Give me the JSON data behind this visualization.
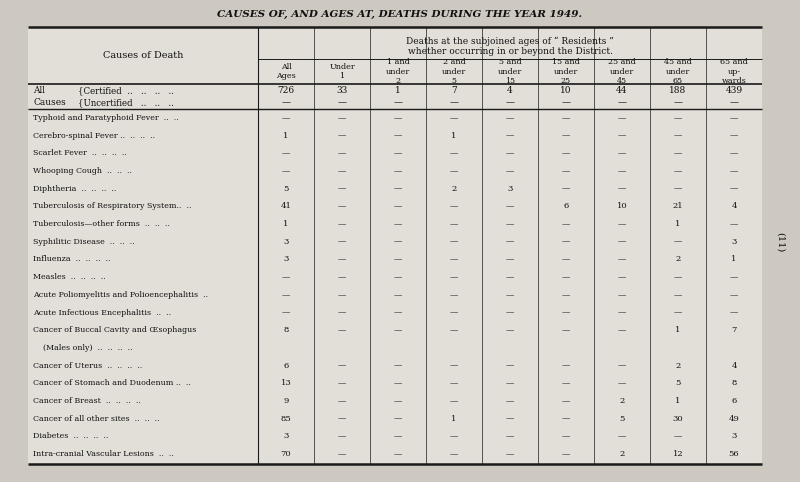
{
  "title": "CAUSES OF, AND AGES AT, DEATHS DURING THE YEAR 1949.",
  "subtitle1": "Deaths at the subjoined ages of “ Residents ”",
  "subtitle2": "whether occurring in or beyond the District.",
  "col_headers": [
    "All\nAges",
    "Under\n1",
    "1 and\nunder\n2",
    "2 and\nunder\n5",
    "5 and\nunder\n15",
    "15 and\nunder\n25",
    "25 and\nunder\n45",
    "45 and\nunder\n65",
    "65 and\nup-\nwards"
  ],
  "data": [
    [
      "726",
      "33",
      "1",
      "7",
      "4",
      "10",
      "44",
      "188",
      "439"
    ],
    [
      "—",
      "—",
      "—",
      "—",
      "—",
      "—",
      "—",
      "—",
      "—"
    ],
    [
      "—",
      "—",
      "—",
      "—",
      "—",
      "—",
      "—",
      "—",
      "—"
    ],
    [
      "1",
      "—",
      "—",
      "1",
      "—",
      "—",
      "—",
      "—",
      "—"
    ],
    [
      "—",
      "—",
      "—",
      "—",
      "—",
      "—",
      "—",
      "—",
      "—"
    ],
    [
      "—",
      "—",
      "—",
      "—",
      "—",
      "—",
      "—",
      "—",
      "—"
    ],
    [
      "5",
      "—",
      "—",
      "2",
      "3",
      "—",
      "—",
      "—",
      "—"
    ],
    [
      "41",
      "—",
      "—",
      "—",
      "—",
      "6",
      "10",
      "21",
      "4"
    ],
    [
      "1",
      "—",
      "—",
      "—",
      "—",
      "—",
      "—",
      "1",
      "—"
    ],
    [
      "3",
      "—",
      "—",
      "—",
      "—",
      "—",
      "—",
      "—",
      "3"
    ],
    [
      "3",
      "—",
      "—",
      "—",
      "—",
      "—",
      "—",
      "2",
      "1"
    ],
    [
      "—",
      "—",
      "—",
      "—",
      "—",
      "—",
      "—",
      "—",
      "—"
    ],
    [
      "—",
      "—",
      "—",
      "—",
      "—",
      "—",
      "—",
      "—",
      "—"
    ],
    [
      "—",
      "—",
      "—",
      "—",
      "—",
      "—",
      "—",
      "—",
      "—"
    ],
    [
      "8",
      "—",
      "—",
      "—",
      "—",
      "—",
      "—",
      "1",
      "7"
    ],
    [
      "6",
      "—",
      "—",
      "—",
      "—",
      "—",
      "—",
      "2",
      "4"
    ],
    [
      "13",
      "—",
      "—",
      "—",
      "—",
      "—",
      "—",
      "5",
      "8"
    ],
    [
      "9",
      "—",
      "—",
      "—",
      "—",
      "—",
      "2",
      "1",
      "6"
    ],
    [
      "85",
      "—",
      "—",
      "1",
      "—",
      "—",
      "5",
      "30",
      "49"
    ],
    [
      "3",
      "—",
      "—",
      "—",
      "—",
      "—",
      "—",
      "—",
      "3"
    ],
    [
      "70",
      "—",
      "—",
      "—",
      "—",
      "—",
      "2",
      "12",
      "56"
    ]
  ],
  "bg_color": "#cdc9c1",
  "table_bg": "#e2ded8",
  "line_color": "#1a1a1a",
  "text_color": "#111111",
  "title_color": "#111111",
  "side_label": "(11)"
}
